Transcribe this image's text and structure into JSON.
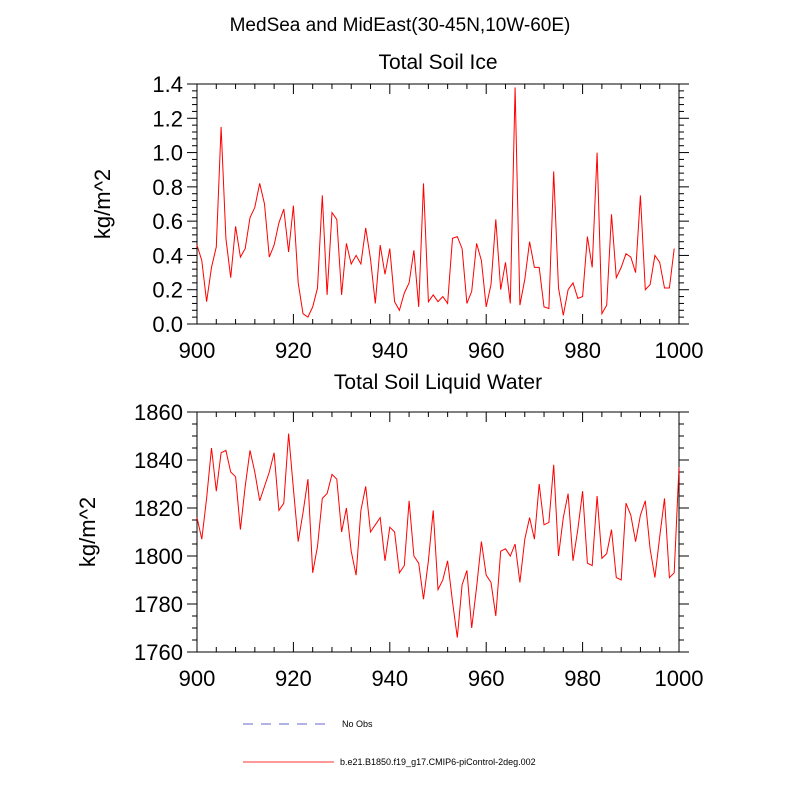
{
  "figure": {
    "title": "MedSea and MidEast(30-45N,10W-60E)"
  },
  "legend": [
    {
      "label": "No Obs",
      "color": "#9999dd",
      "style": "dashed"
    },
    {
      "label": "b.e21.B1850.f19_g17.CMIP6-piControl-2deg.002",
      "color": "#ff6666",
      "style": "solid"
    }
  ],
  "chart_data": [
    {
      "type": "line",
      "title": "Total Soil Ice",
      "xlabel": "",
      "ylabel": "kg/m^2",
      "xlim": [
        900,
        1000
      ],
      "ylim": [
        0.0,
        1.4
      ],
      "xticks": [
        900,
        920,
        940,
        960,
        980,
        1000
      ],
      "xtick_labels": [
        "900",
        "920",
        "940",
        "960",
        "980",
        "1000"
      ],
      "yticks": [
        0.0,
        0.2,
        0.4,
        0.6,
        0.8,
        1.0,
        1.2,
        1.4
      ],
      "ytick_labels": [
        "0.0",
        "0.2",
        "0.4",
        "0.6",
        "0.8",
        "1.0",
        "1.2",
        "1.4"
      ],
      "series": [
        {
          "name": "b.e21.B1850.f19_g17.CMIP6-piControl-2deg.002",
          "color": "#ff0000",
          "x_start": 900,
          "x_step": 1,
          "values": [
            0.46,
            0.37,
            0.13,
            0.33,
            0.45,
            1.15,
            0.5,
            0.27,
            0.57,
            0.39,
            0.44,
            0.62,
            0.68,
            0.82,
            0.7,
            0.39,
            0.46,
            0.59,
            0.67,
            0.42,
            0.69,
            0.24,
            0.06,
            0.04,
            0.1,
            0.21,
            0.75,
            0.17,
            0.65,
            0.61,
            0.17,
            0.47,
            0.35,
            0.4,
            0.35,
            0.56,
            0.38,
            0.12,
            0.46,
            0.29,
            0.44,
            0.13,
            0.08,
            0.18,
            0.24,
            0.43,
            0.1,
            0.82,
            0.13,
            0.17,
            0.13,
            0.16,
            0.12,
            0.5,
            0.51,
            0.44,
            0.12,
            0.19,
            0.47,
            0.37,
            0.1,
            0.23,
            0.61,
            0.2,
            0.36,
            0.12,
            1.38,
            0.11,
            0.26,
            0.48,
            0.33,
            0.33,
            0.1,
            0.09,
            0.89,
            0.21,
            0.05,
            0.2,
            0.24,
            0.15,
            0.16,
            0.51,
            0.33,
            1.0,
            0.06,
            0.11,
            0.64,
            0.27,
            0.33,
            0.41,
            0.39,
            0.3,
            0.75,
            0.2,
            0.23,
            0.4,
            0.36,
            0.21,
            0.21,
            0.44
          ]
        }
      ]
    },
    {
      "type": "line",
      "title": "Total Soil Liquid Water",
      "xlabel": "",
      "ylabel": "kg/m^2",
      "xlim": [
        900,
        1000
      ],
      "ylim": [
        1760,
        1860
      ],
      "xticks": [
        900,
        920,
        940,
        960,
        980,
        1000
      ],
      "xtick_labels": [
        "900",
        "920",
        "940",
        "960",
        "980",
        "1000"
      ],
      "yticks": [
        1760,
        1780,
        1800,
        1820,
        1840,
        1860
      ],
      "ytick_labels": [
        "1760",
        "1780",
        "1800",
        "1820",
        "1840",
        "1860"
      ],
      "series": [
        {
          "name": "b.e21.B1850.f19_g17.CMIP6-piControl-2deg.002",
          "color": "#ff0000",
          "x_start": 900,
          "x_step": 1,
          "values": [
            1816,
            1807,
            1824,
            1845,
            1827,
            1843,
            1844,
            1835,
            1833,
            1811,
            1829,
            1844,
            1835,
            1823,
            1829,
            1835,
            1843,
            1819,
            1822,
            1851,
            1828,
            1806,
            1818,
            1832,
            1793,
            1804,
            1824,
            1826,
            1834,
            1832,
            1810,
            1820,
            1802,
            1792,
            1819,
            1829,
            1810,
            1813,
            1816,
            1798,
            1812,
            1810,
            1793,
            1796,
            1823,
            1800,
            1797,
            1782,
            1798,
            1819,
            1786,
            1790,
            1798,
            1781,
            1766,
            1788,
            1794,
            1770,
            1787,
            1806,
            1792,
            1789,
            1775,
            1802,
            1803,
            1800,
            1805,
            1789,
            1807,
            1816,
            1807,
            1830,
            1813,
            1814,
            1838,
            1800,
            1816,
            1826,
            1798,
            1811,
            1827,
            1797,
            1796,
            1825,
            1799,
            1801,
            1811,
            1791,
            1790,
            1822,
            1817,
            1806,
            1817,
            1823,
            1803,
            1791,
            1808,
            1824,
            1791,
            1793,
            1837
          ]
        }
      ]
    }
  ]
}
